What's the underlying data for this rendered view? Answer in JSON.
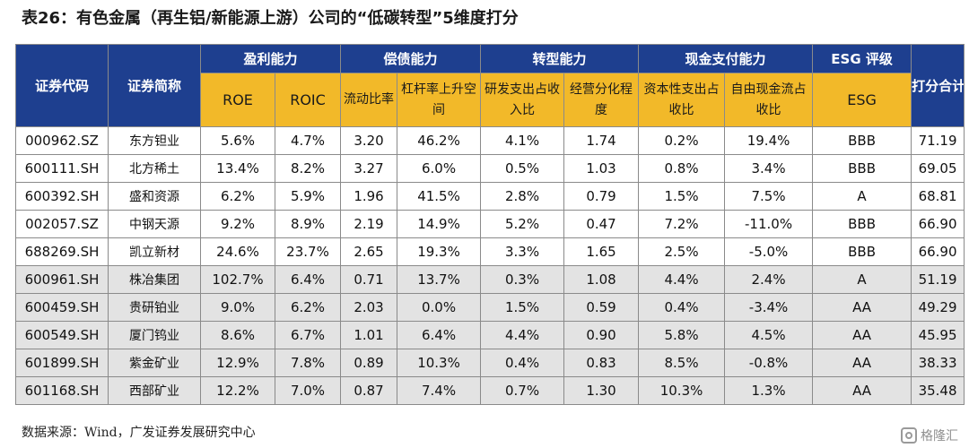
{
  "title": "表26：有色金属（再生铝/新能源上游）公司的“低碳转型”5维度打分",
  "headers": {
    "code": "证券代码",
    "name": "证券简称",
    "profit": "盈利能力",
    "debt": "偿债能力",
    "transform": "转型能力",
    "cash": "现金支付能力",
    "esg_group": "ESG 评级",
    "score": "打分合计"
  },
  "subheaders": {
    "roe": "ROE",
    "roic": "ROIC",
    "current": "流动比率",
    "leverage": "杠杆率上升空间",
    "rd": "研发支出占收入比",
    "diversify": "经营分化程度",
    "capex": "资本性支出占收比",
    "fcf": "自由现金流占收比",
    "esg": "ESG"
  },
  "rows": [
    {
      "code": "000962.SZ",
      "name": "东方钽业",
      "roe": "5.6%",
      "roic": "4.7%",
      "current": "3.20",
      "leverage": "46.2%",
      "rd": "4.1%",
      "diversify": "1.74",
      "capex": "0.2%",
      "fcf": "19.4%",
      "esg": "BBB",
      "score": "71.19"
    },
    {
      "code": "600111.SH",
      "name": "北方稀土",
      "roe": "13.4%",
      "roic": "8.2%",
      "current": "3.27",
      "leverage": "6.0%",
      "rd": "0.5%",
      "diversify": "1.03",
      "capex": "0.8%",
      "fcf": "3.4%",
      "esg": "BBB",
      "score": "69.05"
    },
    {
      "code": "600392.SH",
      "name": "盛和资源",
      "roe": "6.2%",
      "roic": "5.9%",
      "current": "1.96",
      "leverage": "41.5%",
      "rd": "2.8%",
      "diversify": "0.79",
      "capex": "1.5%",
      "fcf": "7.5%",
      "esg": "A",
      "score": "68.81"
    },
    {
      "code": "002057.SZ",
      "name": "中钢天源",
      "roe": "9.2%",
      "roic": "8.9%",
      "current": "2.19",
      "leverage": "14.9%",
      "rd": "5.2%",
      "diversify": "0.47",
      "capex": "7.2%",
      "fcf": "-11.0%",
      "esg": "BBB",
      "score": "66.90"
    },
    {
      "code": "688269.SH",
      "name": "凯立新材",
      "roe": "24.6%",
      "roic": "23.7%",
      "current": "2.65",
      "leverage": "19.3%",
      "rd": "3.3%",
      "diversify": "1.65",
      "capex": "2.5%",
      "fcf": "-5.0%",
      "esg": "BBB",
      "score": "66.90"
    },
    {
      "code": "600961.SH",
      "name": "株冶集团",
      "roe": "102.7%",
      "roic": "6.4%",
      "current": "0.71",
      "leverage": "13.7%",
      "rd": "0.3%",
      "diversify": "1.08",
      "capex": "4.4%",
      "fcf": "2.4%",
      "esg": "A",
      "score": "51.19"
    },
    {
      "code": "600459.SH",
      "name": "贵研铂业",
      "roe": "9.0%",
      "roic": "6.2%",
      "current": "2.03",
      "leverage": "0.0%",
      "rd": "1.5%",
      "diversify": "0.59",
      "capex": "0.4%",
      "fcf": "-3.4%",
      "esg": "AA",
      "score": "49.29"
    },
    {
      "code": "600549.SH",
      "name": "厦门钨业",
      "roe": "8.6%",
      "roic": "6.7%",
      "current": "1.01",
      "leverage": "6.4%",
      "rd": "4.4%",
      "diversify": "0.90",
      "capex": "5.8%",
      "fcf": "4.5%",
      "esg": "AA",
      "score": "45.95"
    },
    {
      "code": "601899.SH",
      "name": "紫金矿业",
      "roe": "12.9%",
      "roic": "7.8%",
      "current": "0.89",
      "leverage": "10.3%",
      "rd": "0.4%",
      "diversify": "0.83",
      "capex": "8.5%",
      "fcf": "-0.8%",
      "esg": "AA",
      "score": "38.33"
    },
    {
      "code": "601168.SH",
      "name": "西部矿业",
      "roe": "12.2%",
      "roic": "7.0%",
      "current": "0.87",
      "leverage": "7.4%",
      "rd": "0.7%",
      "diversify": "1.30",
      "capex": "10.3%",
      "fcf": "1.3%",
      "esg": "AA",
      "score": "35.48"
    }
  ],
  "source": "数据来源：Wind，广发证券发展研究中心",
  "watermark": "格隆汇",
  "colors": {
    "header_blue": "#1e3f8f",
    "subheader_gold": "#f2b929",
    "row_gray": "#e3e3e3"
  }
}
